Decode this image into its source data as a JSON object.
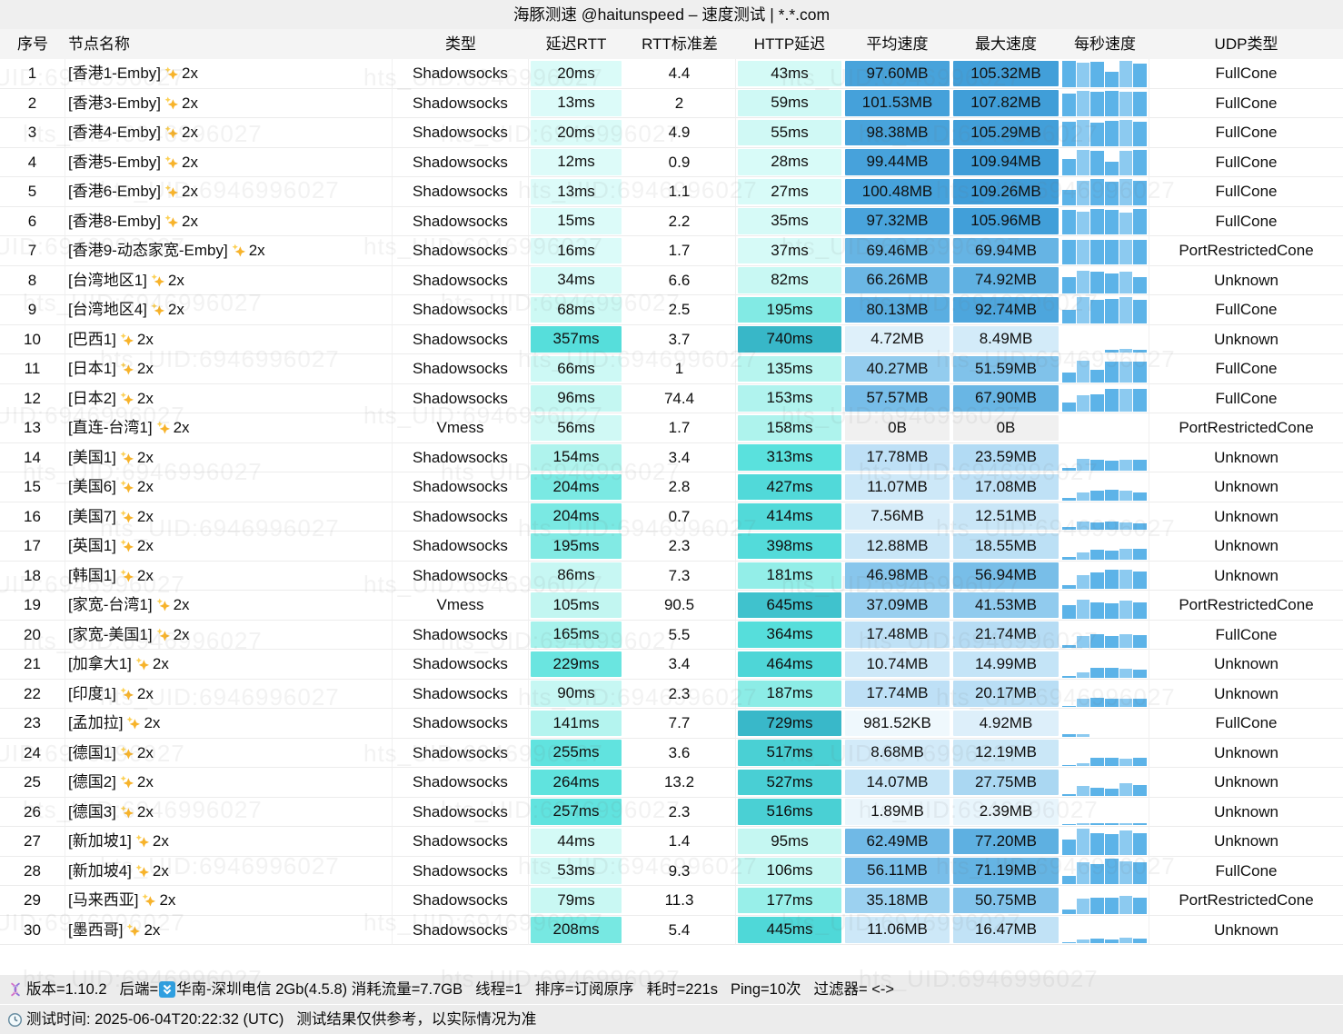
{
  "title": "海豚测速 @haitunspeed – 速度测试 | *.*.com",
  "watermark": "hts_UID:6946996027",
  "columns": [
    "序号",
    "节点名称",
    "类型",
    "延迟RTT",
    "RTT标准差",
    "HTTP延迟",
    "平均速度",
    "最大速度",
    "每秒速度",
    "UDP类型"
  ],
  "colors": {
    "latency_ramp": [
      [
        0,
        "#e0fcfa"
      ],
      [
        60,
        "#cff9f5"
      ],
      [
        110,
        "#c0f6f1"
      ],
      [
        160,
        "#adf3ed"
      ],
      [
        200,
        "#7ce9e3"
      ],
      [
        240,
        "#63e4df"
      ],
      [
        310,
        "#5ae1dd"
      ],
      [
        450,
        "#4fd8d8"
      ],
      [
        560,
        "#46cbd2"
      ],
      [
        660,
        "#3fc0cc"
      ],
      [
        760,
        "#36b5c7"
      ]
    ],
    "speed_ramp": [
      [
        0,
        "#f3fafe"
      ],
      [
        5,
        "#ddeffa"
      ],
      [
        10,
        "#cfe9f8"
      ],
      [
        20,
        "#b9def5"
      ],
      [
        30,
        "#a5d5f1"
      ],
      [
        45,
        "#8bc8ed"
      ],
      [
        60,
        "#73bbe7"
      ],
      [
        75,
        "#60b1e2"
      ],
      [
        90,
        "#4fa8de"
      ],
      [
        105,
        "#429fd9"
      ],
      [
        118,
        "#3b99d6"
      ]
    ],
    "zero_cell": "#f0f0f0",
    "bar_main": "#5cb3e8",
    "bar_light": "#8ccaf0",
    "sparkle": "#f7b32b"
  },
  "rows": [
    {
      "i": 1,
      "name": "[香港1-Emby]",
      "sfx": "2x",
      "type": "Shadowsocks",
      "lat": "20ms",
      "latv": 20,
      "sd": "4.4",
      "http": "43ms",
      "httpv": 43,
      "avg": "97.60MB",
      "avgv": 97.6,
      "max": "105.32MB",
      "maxv": 105.32,
      "udp": "FullCone",
      "spark": [
        0.95,
        0.9,
        0.92,
        0.55,
        0.95,
        0.88
      ]
    },
    {
      "i": 2,
      "name": "[香港3-Emby]",
      "sfx": "2x",
      "type": "Shadowsocks",
      "lat": "13ms",
      "latv": 13,
      "sd": "2",
      "http": "59ms",
      "httpv": 59,
      "avg": "101.53MB",
      "avgv": 101.53,
      "max": "107.82MB",
      "maxv": 107.82,
      "udp": "FullCone",
      "spark": [
        0.85,
        0.95,
        0.92,
        0.95,
        0.9,
        0.93
      ]
    },
    {
      "i": 3,
      "name": "[香港4-Emby]",
      "sfx": "2x",
      "type": "Shadowsocks",
      "lat": "20ms",
      "latv": 20,
      "sd": "4.9",
      "http": "55ms",
      "httpv": 55,
      "avg": "98.38MB",
      "avgv": 98.38,
      "max": "105.29MB",
      "maxv": 105.29,
      "udp": "FullCone",
      "spark": [
        0.9,
        0.95,
        0.85,
        0.92,
        0.95,
        0.9
      ]
    },
    {
      "i": 4,
      "name": "[香港5-Emby]",
      "sfx": "2x",
      "type": "Shadowsocks",
      "lat": "12ms",
      "latv": 12,
      "sd": "0.9",
      "http": "28ms",
      "httpv": 28,
      "avg": "99.44MB",
      "avgv": 99.44,
      "max": "109.94MB",
      "maxv": 109.94,
      "udp": "FullCone",
      "spark": [
        0.6,
        0.95,
        0.9,
        0.5,
        0.92,
        0.95
      ]
    },
    {
      "i": 5,
      "name": "[香港6-Emby]",
      "sfx": "2x",
      "type": "Shadowsocks",
      "lat": "13ms",
      "latv": 13,
      "sd": "1.1",
      "http": "27ms",
      "httpv": 27,
      "avg": "100.48MB",
      "avgv": 100.48,
      "max": "109.26MB",
      "maxv": 109.26,
      "udp": "FullCone",
      "spark": [
        0.55,
        0.9,
        0.95,
        0.85,
        0.95,
        0.9
      ]
    },
    {
      "i": 6,
      "name": "[香港8-Emby]",
      "sfx": "2x",
      "type": "Shadowsocks",
      "lat": "15ms",
      "latv": 15,
      "sd": "2.2",
      "http": "35ms",
      "httpv": 35,
      "avg": "97.32MB",
      "avgv": 97.32,
      "max": "105.96MB",
      "maxv": 105.96,
      "udp": "FullCone",
      "spark": [
        0.9,
        0.85,
        0.95,
        0.9,
        0.8,
        0.95
      ]
    },
    {
      "i": 7,
      "name": "[香港9-动态家宽-Emby]",
      "sfx": "2x",
      "type": "Shadowsocks",
      "lat": "16ms",
      "latv": 16,
      "sd": "1.7",
      "http": "37ms",
      "httpv": 37,
      "avg": "69.46MB",
      "avgv": 69.46,
      "max": "69.94MB",
      "maxv": 69.94,
      "udp": "PortRestrictedCone",
      "spark": [
        0.9,
        0.9,
        0.9,
        0.9,
        0.9,
        0.9
      ]
    },
    {
      "i": 8,
      "name": "[台湾地区1]",
      "sfx": "2x",
      "type": "Shadowsocks",
      "lat": "34ms",
      "latv": 34,
      "sd": "6.6",
      "http": "82ms",
      "httpv": 82,
      "avg": "66.26MB",
      "avgv": 66.26,
      "max": "74.92MB",
      "maxv": 74.92,
      "udp": "Unknown",
      "spark": [
        0.6,
        0.85,
        0.8,
        0.75,
        0.8,
        0.6
      ]
    },
    {
      "i": 9,
      "name": "[台湾地区4]",
      "sfx": "2x",
      "type": "Shadowsocks",
      "lat": "68ms",
      "latv": 68,
      "sd": "2.5",
      "http": "195ms",
      "httpv": 195,
      "avg": "80.13MB",
      "avgv": 80.13,
      "max": "92.74MB",
      "maxv": 92.74,
      "udp": "FullCone",
      "spark": [
        0.5,
        0.95,
        0.85,
        0.9,
        0.95,
        0.85
      ]
    },
    {
      "i": 10,
      "name": "[巴西1]",
      "sfx": "2x",
      "type": "Shadowsocks",
      "lat": "357ms",
      "latv": 357,
      "sd": "3.7",
      "http": "740ms",
      "httpv": 740,
      "avg": "4.72MB",
      "avgv": 4.72,
      "max": "8.49MB",
      "maxv": 8.49,
      "udp": "Unknown",
      "spark": [
        0,
        0,
        0,
        0.1,
        0.13,
        0.1
      ]
    },
    {
      "i": 11,
      "name": "[日本1]",
      "sfx": "2x",
      "type": "Shadowsocks",
      "lat": "66ms",
      "latv": 66,
      "sd": "1",
      "http": "135ms",
      "httpv": 135,
      "avg": "40.27MB",
      "avgv": 40.27,
      "max": "51.59MB",
      "maxv": 51.59,
      "udp": "FullCone",
      "spark": [
        0.35,
        0.8,
        0.45,
        0.75,
        0.78,
        0.75
      ]
    },
    {
      "i": 12,
      "name": "[日本2]",
      "sfx": "2x",
      "type": "Shadowsocks",
      "lat": "96ms",
      "latv": 96,
      "sd": "74.4",
      "http": "153ms",
      "httpv": 153,
      "avg": "57.57MB",
      "avgv": 57.57,
      "max": "67.90MB",
      "maxv": 67.9,
      "udp": "FullCone",
      "spark": [
        0.35,
        0.6,
        0.65,
        0.85,
        0.85,
        0.85
      ]
    },
    {
      "i": 13,
      "name": "[直连-台湾1]",
      "sfx": "2x",
      "type": "Vmess",
      "lat": "56ms",
      "latv": 56,
      "sd": "1.7",
      "http": "158ms",
      "httpv": 158,
      "avg": "0B",
      "avgv": null,
      "max": "0B",
      "maxv": null,
      "udp": "PortRestrictedCone",
      "spark": [
        0,
        0,
        0,
        0,
        0,
        0
      ]
    },
    {
      "i": 14,
      "name": "[美国1]",
      "sfx": "2x",
      "type": "Shadowsocks",
      "lat": "154ms",
      "latv": 154,
      "sd": "3.4",
      "http": "313ms",
      "httpv": 313,
      "avg": "17.78MB",
      "avgv": 17.78,
      "max": "23.59MB",
      "maxv": 23.59,
      "udp": "Unknown",
      "spark": [
        0.1,
        0.45,
        0.42,
        0.38,
        0.42,
        0.4
      ]
    },
    {
      "i": 15,
      "name": "[美国6]",
      "sfx": "2x",
      "type": "Shadowsocks",
      "lat": "204ms",
      "latv": 204,
      "sd": "2.8",
      "http": "427ms",
      "httpv": 427,
      "avg": "11.07MB",
      "avgv": 11.07,
      "max": "17.08MB",
      "maxv": 17.08,
      "udp": "Unknown",
      "spark": [
        0.08,
        0.3,
        0.35,
        0.4,
        0.35,
        0.3
      ]
    },
    {
      "i": 16,
      "name": "[美国7]",
      "sfx": "2x",
      "type": "Shadowsocks",
      "lat": "204ms",
      "latv": 204,
      "sd": "0.7",
      "http": "414ms",
      "httpv": 414,
      "avg": "7.56MB",
      "avgv": 7.56,
      "max": "12.51MB",
      "maxv": 12.51,
      "udp": "Unknown",
      "spark": [
        0.1,
        0.3,
        0.28,
        0.3,
        0.28,
        0.25
      ]
    },
    {
      "i": 17,
      "name": "[英国1]",
      "sfx": "2x",
      "type": "Shadowsocks",
      "lat": "195ms",
      "latv": 195,
      "sd": "2.3",
      "http": "398ms",
      "httpv": 398,
      "avg": "12.88MB",
      "avgv": 12.88,
      "max": "18.55MB",
      "maxv": 18.55,
      "udp": "Unknown",
      "spark": [
        0.08,
        0.25,
        0.35,
        0.32,
        0.4,
        0.38
      ]
    },
    {
      "i": 18,
      "name": "[韩国1]",
      "sfx": "2x",
      "type": "Shadowsocks",
      "lat": "86ms",
      "latv": 86,
      "sd": "7.3",
      "http": "181ms",
      "httpv": 181,
      "avg": "46.98MB",
      "avgv": 46.98,
      "max": "56.94MB",
      "maxv": 56.94,
      "udp": "Unknown",
      "spark": [
        0.15,
        0.5,
        0.6,
        0.7,
        0.7,
        0.65
      ]
    },
    {
      "i": 19,
      "name": "[家宽-台湾1]",
      "sfx": "2x",
      "type": "Vmess",
      "lat": "105ms",
      "latv": 105,
      "sd": "90.5",
      "http": "645ms",
      "httpv": 645,
      "avg": "37.09MB",
      "avgv": 37.09,
      "max": "41.53MB",
      "maxv": 41.53,
      "udp": "PortRestrictedCone",
      "spark": [
        0.5,
        0.7,
        0.6,
        0.55,
        0.65,
        0.6
      ]
    },
    {
      "i": 20,
      "name": "[家宽-美国1]",
      "sfx": "2x",
      "type": "Shadowsocks",
      "lat": "165ms",
      "latv": 165,
      "sd": "5.5",
      "http": "364ms",
      "httpv": 364,
      "avg": "17.48MB",
      "avgv": 17.48,
      "max": "21.74MB",
      "maxv": 21.74,
      "udp": "FullCone",
      "spark": [
        0.1,
        0.45,
        0.5,
        0.45,
        0.5,
        0.48
      ]
    },
    {
      "i": 21,
      "name": "[加拿大1]",
      "sfx": "2x",
      "type": "Shadowsocks",
      "lat": "229ms",
      "latv": 229,
      "sd": "3.4",
      "http": "464ms",
      "httpv": 464,
      "avg": "10.74MB",
      "avgv": 10.74,
      "max": "14.99MB",
      "maxv": 14.99,
      "udp": "Unknown",
      "spark": [
        0.05,
        0.2,
        0.35,
        0.35,
        0.32,
        0.3
      ]
    },
    {
      "i": 22,
      "name": "[印度1]",
      "sfx": "2x",
      "type": "Shadowsocks",
      "lat": "90ms",
      "latv": 90,
      "sd": "2.3",
      "http": "187ms",
      "httpv": 187,
      "avg": "17.74MB",
      "avgv": 17.74,
      "max": "20.17MB",
      "maxv": 20.17,
      "udp": "Unknown",
      "spark": [
        0.05,
        0.3,
        0.35,
        0.3,
        0.32,
        0.3
      ]
    },
    {
      "i": 23,
      "name": "[孟加拉]",
      "sfx": "2x",
      "type": "Shadowsocks",
      "lat": "141ms",
      "latv": 141,
      "sd": "7.7",
      "http": "729ms",
      "httpv": 729,
      "avg": "981.52KB",
      "avgv": 0.96,
      "max": "4.92MB",
      "maxv": 4.92,
      "udp": "FullCone",
      "spark": [
        0.07,
        0.1,
        0,
        0,
        0,
        0
      ]
    },
    {
      "i": 24,
      "name": "[德国1]",
      "sfx": "2x",
      "type": "Shadowsocks",
      "lat": "255ms",
      "latv": 255,
      "sd": "3.6",
      "http": "517ms",
      "httpv": 517,
      "avg": "8.68MB",
      "avgv": 8.68,
      "max": "12.19MB",
      "maxv": 12.19,
      "udp": "Unknown",
      "spark": [
        0.05,
        0.1,
        0.3,
        0.3,
        0.28,
        0.3
      ]
    },
    {
      "i": 25,
      "name": "[德国2]",
      "sfx": "2x",
      "type": "Shadowsocks",
      "lat": "264ms",
      "latv": 264,
      "sd": "13.2",
      "http": "527ms",
      "httpv": 527,
      "avg": "14.07MB",
      "avgv": 14.07,
      "max": "27.75MB",
      "maxv": 27.75,
      "udp": "Unknown",
      "spark": [
        0.06,
        0.35,
        0.3,
        0.25,
        0.45,
        0.4
      ]
    },
    {
      "i": 26,
      "name": "[德国3]",
      "sfx": "2x",
      "type": "Shadowsocks",
      "lat": "257ms",
      "latv": 257,
      "sd": "2.3",
      "http": "516ms",
      "httpv": 516,
      "avg": "1.89MB",
      "avgv": 1.89,
      "max": "2.39MB",
      "maxv": 2.39,
      "udp": "Unknown",
      "spark": [
        0.05,
        0.08,
        0.08,
        0.08,
        0.08,
        0.06
      ]
    },
    {
      "i": 27,
      "name": "[新加坡1]",
      "sfx": "2x",
      "type": "Shadowsocks",
      "lat": "44ms",
      "latv": 44,
      "sd": "1.4",
      "http": "95ms",
      "httpv": 95,
      "avg": "62.49MB",
      "avgv": 62.49,
      "max": "77.20MB",
      "maxv": 77.2,
      "udp": "Unknown",
      "spark": [
        0.55,
        0.95,
        0.8,
        0.78,
        0.9,
        0.8
      ]
    },
    {
      "i": 28,
      "name": "[新加坡4]",
      "sfx": "2x",
      "type": "Shadowsocks",
      "lat": "53ms",
      "latv": 53,
      "sd": "9.3",
      "http": "106ms",
      "httpv": 106,
      "avg": "56.11MB",
      "avgv": 56.11,
      "max": "71.19MB",
      "maxv": 71.19,
      "udp": "FullCone",
      "spark": [
        0.3,
        0.8,
        0.75,
        0.95,
        0.85,
        0.8
      ]
    },
    {
      "i": 29,
      "name": "[马来西亚]",
      "sfx": "2x",
      "type": "Shadowsocks",
      "lat": "79ms",
      "latv": 79,
      "sd": "11.3",
      "http": "177ms",
      "httpv": 177,
      "avg": "35.18MB",
      "avgv": 35.18,
      "max": "50.75MB",
      "maxv": 50.75,
      "udp": "PortRestrictedCone",
      "spark": [
        0.15,
        0.55,
        0.6,
        0.6,
        0.65,
        0.6
      ]
    },
    {
      "i": 30,
      "name": "[墨西哥]",
      "sfx": "2x",
      "type": "Shadowsocks",
      "lat": "208ms",
      "latv": 208,
      "sd": "5.4",
      "http": "445ms",
      "httpv": 445,
      "avg": "11.06MB",
      "avgv": 11.06,
      "max": "16.47MB",
      "maxv": 16.47,
      "udp": "Unknown",
      "spark": [
        0.05,
        0.15,
        0.18,
        0.15,
        0.2,
        0.18
      ]
    }
  ],
  "footer": {
    "version": "版本=1.10.2",
    "backend_label": "后端=",
    "backend_value": "华南-深圳电信 2Gb(4.5.8) 消耗流量=7.7GB",
    "threads": "线程=1",
    "sort": "排序=订阅原序",
    "elapsed": "耗时=221s",
    "ping": "Ping=10次",
    "filter": "过滤器= <->",
    "test_time": "测试时间: 2025-06-04T20:22:32 (UTC)",
    "disclaimer": "测试结果仅供参考，以实际情况为准"
  }
}
